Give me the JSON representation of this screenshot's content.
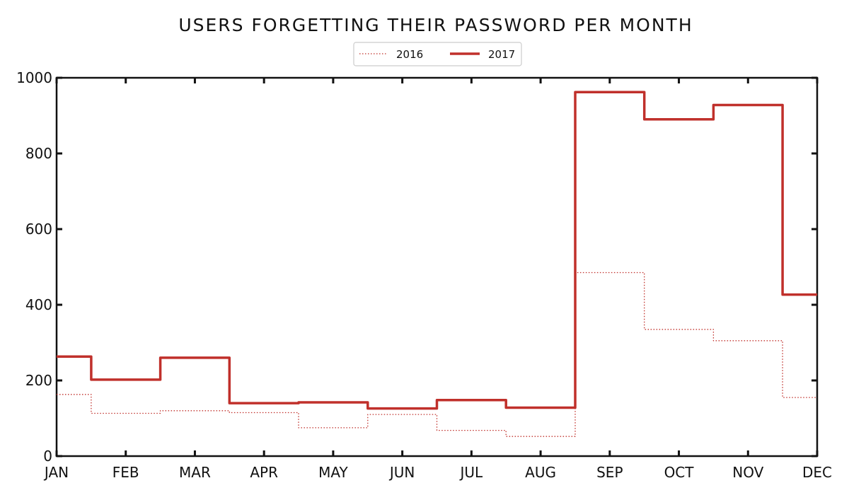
{
  "chart_data": {
    "type": "line",
    "title": "USERS FORGETTING THEIR PASSWORD PER MONTH",
    "xlabel": "",
    "ylabel": "",
    "categories": [
      "JAN",
      "FEB",
      "MAR",
      "APR",
      "MAY",
      "JUN",
      "JUL",
      "AUG",
      "SEP",
      "OCT",
      "NOV",
      "DEC"
    ],
    "y_ticks": [
      "0",
      "200",
      "400",
      "600",
      "800",
      "1000"
    ],
    "ylim": [
      0,
      1000
    ],
    "step": true,
    "grid": false,
    "legend_position": "top-center",
    "series": [
      {
        "name": "2016",
        "style": "dotted",
        "color": "#c0302b",
        "values": [
          163,
          113,
          120,
          115,
          75,
          110,
          68,
          52,
          485,
          335,
          305,
          155
        ]
      },
      {
        "name": "2017",
        "style": "solid",
        "color": "#c0302b",
        "values": [
          263,
          202,
          260,
          140,
          142,
          126,
          148,
          128,
          962,
          890,
          928,
          427
        ]
      }
    ]
  }
}
